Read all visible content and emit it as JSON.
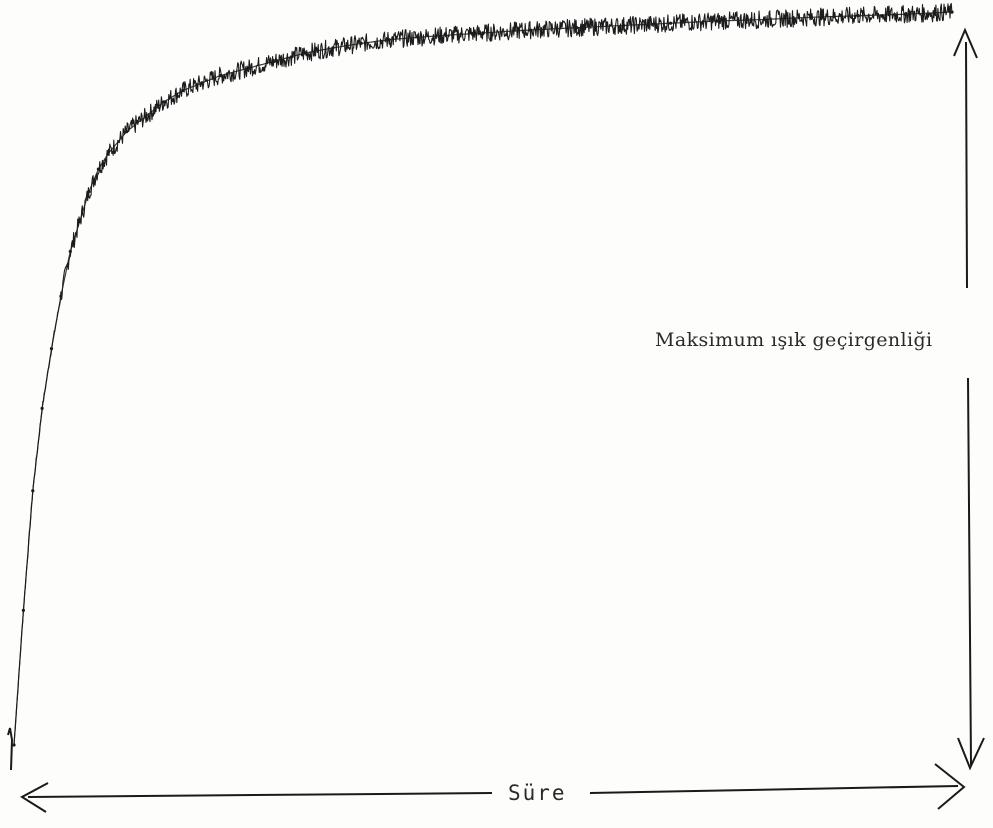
{
  "chart_data": {
    "type": "line",
    "title": "",
    "xlabel": "Süre",
    "ylabel": "Maksimum ışık geçirgenliği",
    "grid": false,
    "legend": "none",
    "xlim": [
      0,
      1
    ],
    "ylim": [
      0,
      1
    ],
    "series": [
      {
        "x": [
          0.0,
          0.01,
          0.02,
          0.03,
          0.04,
          0.05,
          0.06,
          0.07,
          0.08,
          0.09,
          0.1,
          0.12,
          0.14,
          0.16,
          0.18,
          0.2,
          0.22,
          0.25,
          0.28,
          0.31,
          0.34,
          0.37,
          0.4,
          0.45,
          0.5,
          0.55,
          0.6,
          0.65,
          0.7,
          0.75,
          0.8,
          0.85,
          0.9,
          0.95,
          1.0
        ],
        "values": [
          0.02,
          0.2,
          0.36,
          0.47,
          0.55,
          0.62,
          0.68,
          0.72,
          0.76,
          0.79,
          0.81,
          0.84,
          0.86,
          0.88,
          0.895,
          0.905,
          0.915,
          0.925,
          0.935,
          0.945,
          0.952,
          0.958,
          0.963,
          0.968,
          0.972,
          0.976,
          0.979,
          0.982,
          0.985,
          0.988,
          0.99,
          0.993,
          0.995,
          0.997,
          1.0
        ]
      }
    ]
  }
}
